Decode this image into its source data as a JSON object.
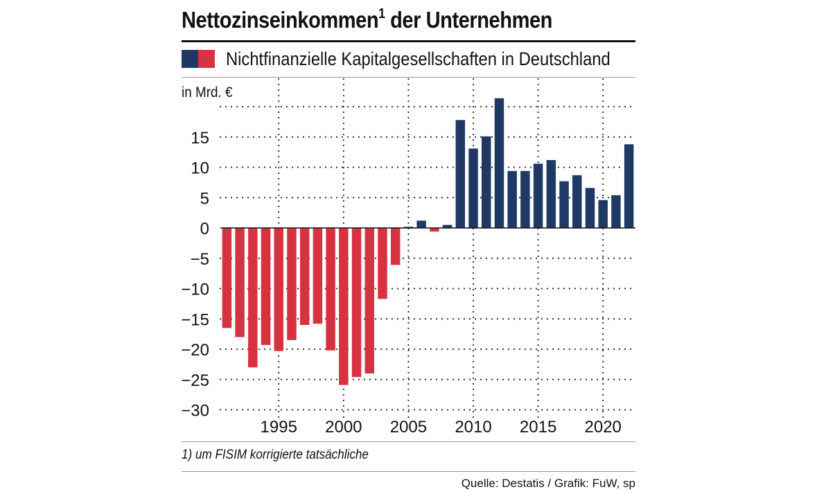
{
  "chart_data": {
    "type": "bar",
    "title": "Nettozinseinkommen",
    "title_superscript": "1",
    "title_suffix": "der Unternehmen",
    "subtitle": "Nichtfinanzielle Kapitalgesellschaften in Deutschland",
    "ylabel": "in Mrd. €",
    "ylim": [
      -30,
      20
    ],
    "yticks": [
      15,
      10,
      5,
      0,
      -5,
      -10,
      -15,
      -20,
      -25,
      -30
    ],
    "ytick_labels": [
      "15",
      "10",
      "5",
      "0",
      "−5",
      "−10",
      "−15",
      "−20",
      "−25",
      "−30"
    ],
    "xticks": [
      1995,
      2000,
      2005,
      2010,
      2015,
      2020
    ],
    "xtick_labels": [
      "1995",
      "2000",
      "2005",
      "2010",
      "2015",
      "2020"
    ],
    "x": [
      1991,
      1992,
      1993,
      1994,
      1995,
      1996,
      1997,
      1998,
      1999,
      2000,
      2001,
      2002,
      2003,
      2004,
      2005,
      2006,
      2007,
      2008,
      2009,
      2010,
      2011,
      2012,
      2013,
      2014,
      2015,
      2016,
      2017,
      2018,
      2019,
      2020,
      2021,
      2022
    ],
    "values": [
      -16.5,
      -18,
      -23,
      -19.3,
      -20.3,
      -18.5,
      -16,
      -15.8,
      -20.2,
      -25.9,
      -24.6,
      -24,
      -11.7,
      -6.1,
      0.2,
      1.2,
      -0.6,
      0.5,
      17.8,
      13.1,
      15.1,
      21.4,
      9.4,
      9.4,
      10.6,
      11.2,
      7.7,
      8.7,
      6.6,
      4.6,
      5.4,
      13.8
    ],
    "colors": {
      "positive": "#1f3864",
      "negative": "#d7323f"
    },
    "grid": true,
    "footnote": "1) um FISIM korrigierte tatsächliche",
    "source": "Quelle: Destatis / Grafik: FuW, sp"
  }
}
